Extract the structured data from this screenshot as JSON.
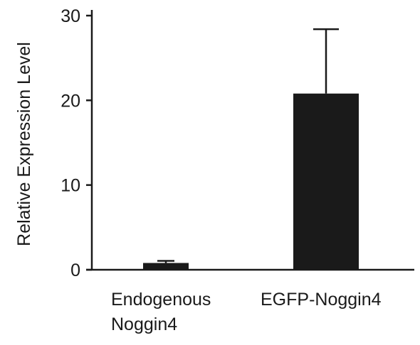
{
  "chart_data": {
    "type": "bar",
    "title": "",
    "xlabel": "",
    "ylabel": "Relative Expression Level",
    "ylim": [
      0,
      30
    ],
    "yticks": [
      "0",
      "10",
      "20",
      "30"
    ],
    "grid": false,
    "categories": [
      {
        "line1": "Endogenous",
        "line2": "Noggin4"
      },
      {
        "line1": "EGFP-Noggin4",
        "line2": ""
      }
    ],
    "values": [
      0.8,
      20.8
    ],
    "error_upper": [
      0.25,
      7.6
    ],
    "colors": {
      "bar": "#1a1a1a",
      "axis": "#1a1a1a"
    }
  }
}
